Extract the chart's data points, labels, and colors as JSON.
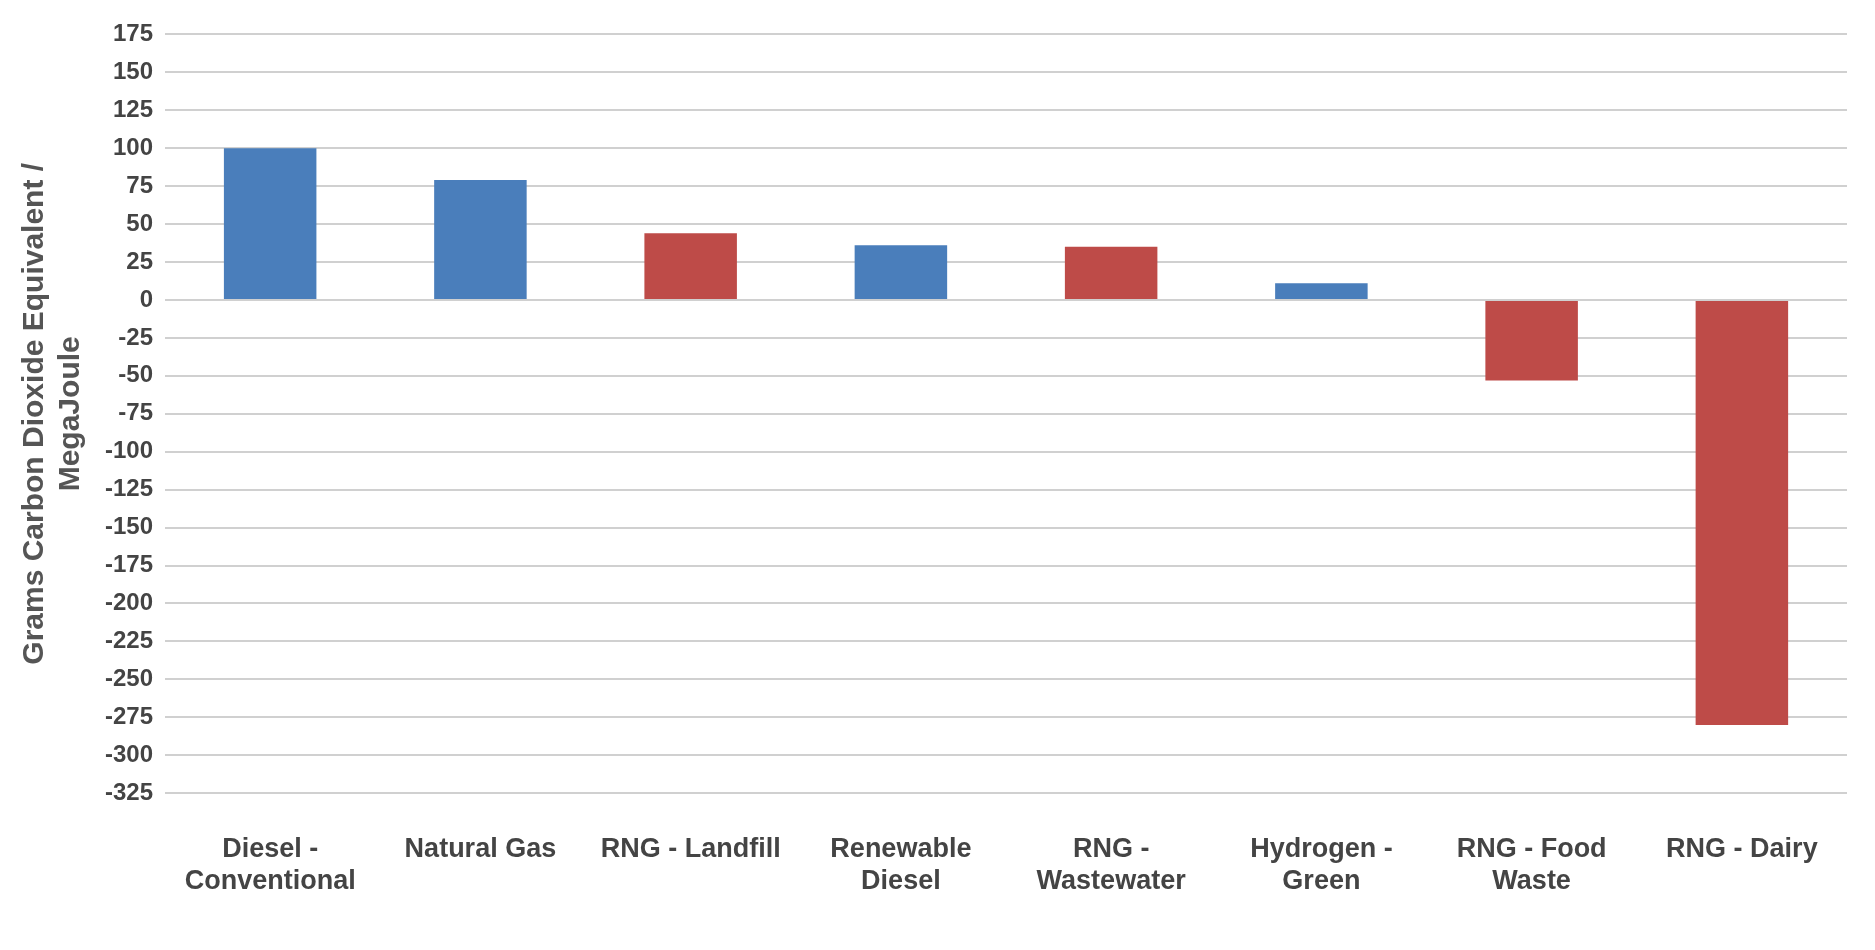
{
  "chart_data": {
    "type": "bar",
    "ylabel": "Grams Carbon Dioxide Equivalent / MegaJoule",
    "categories": [
      "Diesel - Conventional",
      "Natural Gas",
      "RNG - Landfill",
      "Renewable Diesel",
      "RNG - Wastewater",
      "Hydrogen - Green",
      "RNG - Food Waste",
      "RNG - Dairy"
    ],
    "values": [
      100,
      79,
      44,
      36,
      35,
      11,
      -53,
      -280
    ],
    "colors": [
      "#4a7ebb",
      "#4a7ebb",
      "#be4b48",
      "#4a7ebb",
      "#be4b48",
      "#4a7ebb",
      "#be4b48",
      "#be4b48"
    ],
    "ylim": [
      -325,
      175
    ],
    "yticks": [
      -325,
      -300,
      -275,
      -250,
      -225,
      -200,
      -175,
      -150,
      -125,
      -100,
      -75,
      -50,
      -25,
      0,
      25,
      50,
      75,
      100,
      125,
      150,
      175
    ],
    "grid": "y",
    "legend": false
  }
}
